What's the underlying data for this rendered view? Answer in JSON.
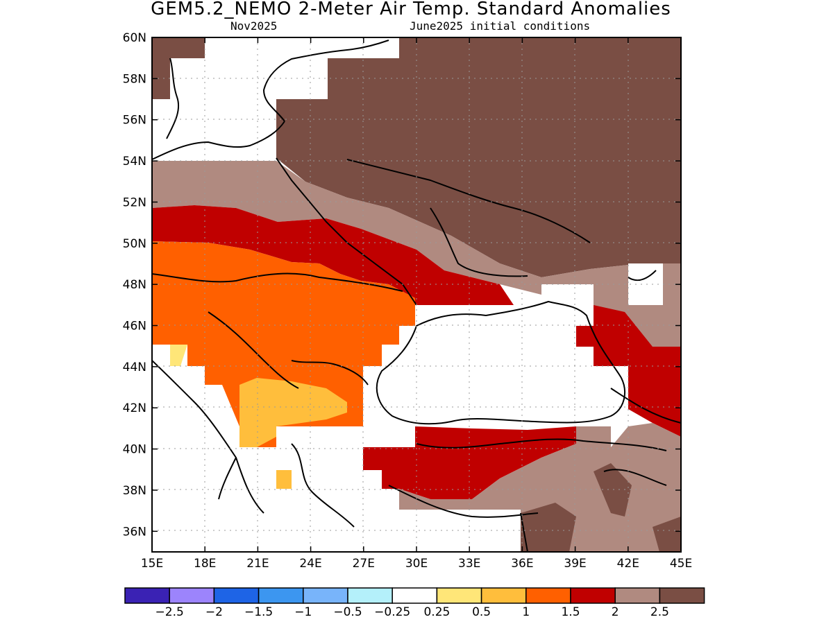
{
  "title": "GEM5.2_NEMO 2-Meter Air Temp. Standard Anomalies",
  "subtitle_left": "Nov2025",
  "subtitle_right": "June2025 initial conditions",
  "lat_labels": [
    "60N",
    "58N",
    "56N",
    "54N",
    "52N",
    "50N",
    "48N",
    "46N",
    "44N",
    "42N",
    "40N",
    "38N",
    "36N"
  ],
  "lon_labels": [
    "15E",
    "18E",
    "21E",
    "24E",
    "27E",
    "30E",
    "33E",
    "36E",
    "39E",
    "42E",
    "45E"
  ],
  "colorbar": {
    "colors": [
      "#3a22b4",
      "#9c84fc",
      "#1e64e6",
      "#3c96f0",
      "#78b4fa",
      "#b4f0fa",
      "#ffffff",
      "#ffe678",
      "#ffbe3c",
      "#ff6000",
      "#c00000",
      "#b08a80",
      "#7a4e44"
    ],
    "labels": [
      "-2.5",
      "-2",
      "-1.5",
      "-1",
      "-0.5",
      "-0.25",
      "0.25",
      "0.5",
      "1",
      "1.5",
      "2",
      "2.5"
    ]
  },
  "map": {
    "bounds": {
      "lon_min": 15,
      "lon_max": 45,
      "lat_min": 35,
      "lat_max": 60
    },
    "regions": [
      {
        "name": "anomaly-2.5-north",
        "color": "#7a4e44"
      },
      {
        "name": "anomaly-2-2.5-band",
        "color": "#b08a80"
      },
      {
        "name": "anomaly-1.5-2-band",
        "color": "#c00000"
      },
      {
        "name": "anomaly-1-1.5-region",
        "color": "#ff6000"
      },
      {
        "name": "anomaly-0.5-1-region",
        "color": "#ffbe3c"
      },
      {
        "name": "black-sea-masked",
        "color": "#ffffff"
      },
      {
        "name": "turkey-anomaly",
        "color": "#c00000"
      },
      {
        "name": "caucasus-anomaly",
        "color": "#b08a80"
      }
    ]
  }
}
